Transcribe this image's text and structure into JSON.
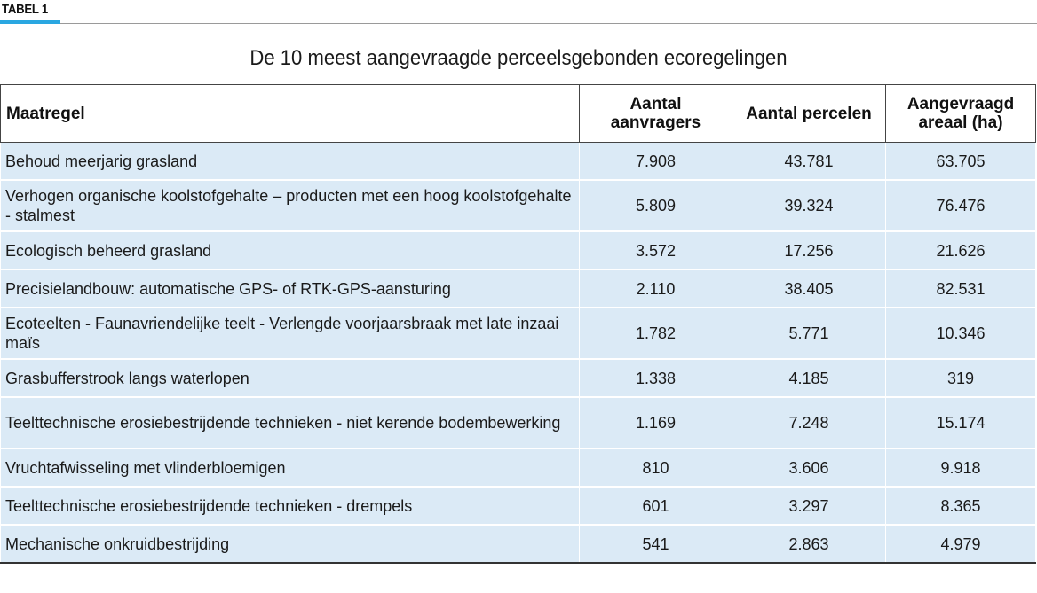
{
  "label": "TABEL 1",
  "title": "De 10 meest aangevraagde perceelsgebonden ecoregelingen",
  "columns": [
    "Maatregel",
    "Aantal aanvragers",
    "Aantal percelen",
    "Aangevraagd areaal (ha)"
  ],
  "rows": [
    {
      "name": "Behoud meerjarig grasland",
      "aanvragers": "7.908",
      "percelen": "43.781",
      "areaal": "63.705"
    },
    {
      "name": "Verhogen organische koolstofgehalte – producten met een hoog koolstofgehalte - stalmest",
      "aanvragers": "5.809",
      "percelen": "39.324",
      "areaal": "76.476"
    },
    {
      "name": "Ecologisch beheerd grasland",
      "aanvragers": "3.572",
      "percelen": "17.256",
      "areaal": "21.626"
    },
    {
      "name": "Precisielandbouw: automatische GPS- of RTK-GPS-aansturing",
      "aanvragers": "2.110",
      "percelen": "38.405",
      "areaal": "82.531"
    },
    {
      "name": "Ecoteelten - Faunavriendelijke teelt - Verlengde voorjaarsbraak met late inzaai maïs",
      "aanvragers": "1.782",
      "percelen": "5.771",
      "areaal": "10.346"
    },
    {
      "name": "Grasbufferstrook langs waterlopen",
      "aanvragers": "1.338",
      "percelen": "4.185",
      "areaal": "319"
    },
    {
      "name": "Teelttechnische erosiebestrijdende technieken - niet kerende bodembewerking",
      "aanvragers": "1.169",
      "percelen": "7.248",
      "areaal": "15.174"
    },
    {
      "name": "Vruchtafwisseling met vlinderbloemigen",
      "aanvragers": "810",
      "percelen": "3.606",
      "areaal": "9.918"
    },
    {
      "name": "Teelttechnische erosiebestrijdende technieken - drempels",
      "aanvragers": "601",
      "percelen": "3.297",
      "areaal": "8.365"
    },
    {
      "name": "Mechanische onkruidbestrijding",
      "aanvragers": "541",
      "percelen": "2.863",
      "areaal": "4.979"
    }
  ],
  "colors": {
    "accent": "#2aa7e1",
    "row_fill": "#dbeaf6"
  }
}
